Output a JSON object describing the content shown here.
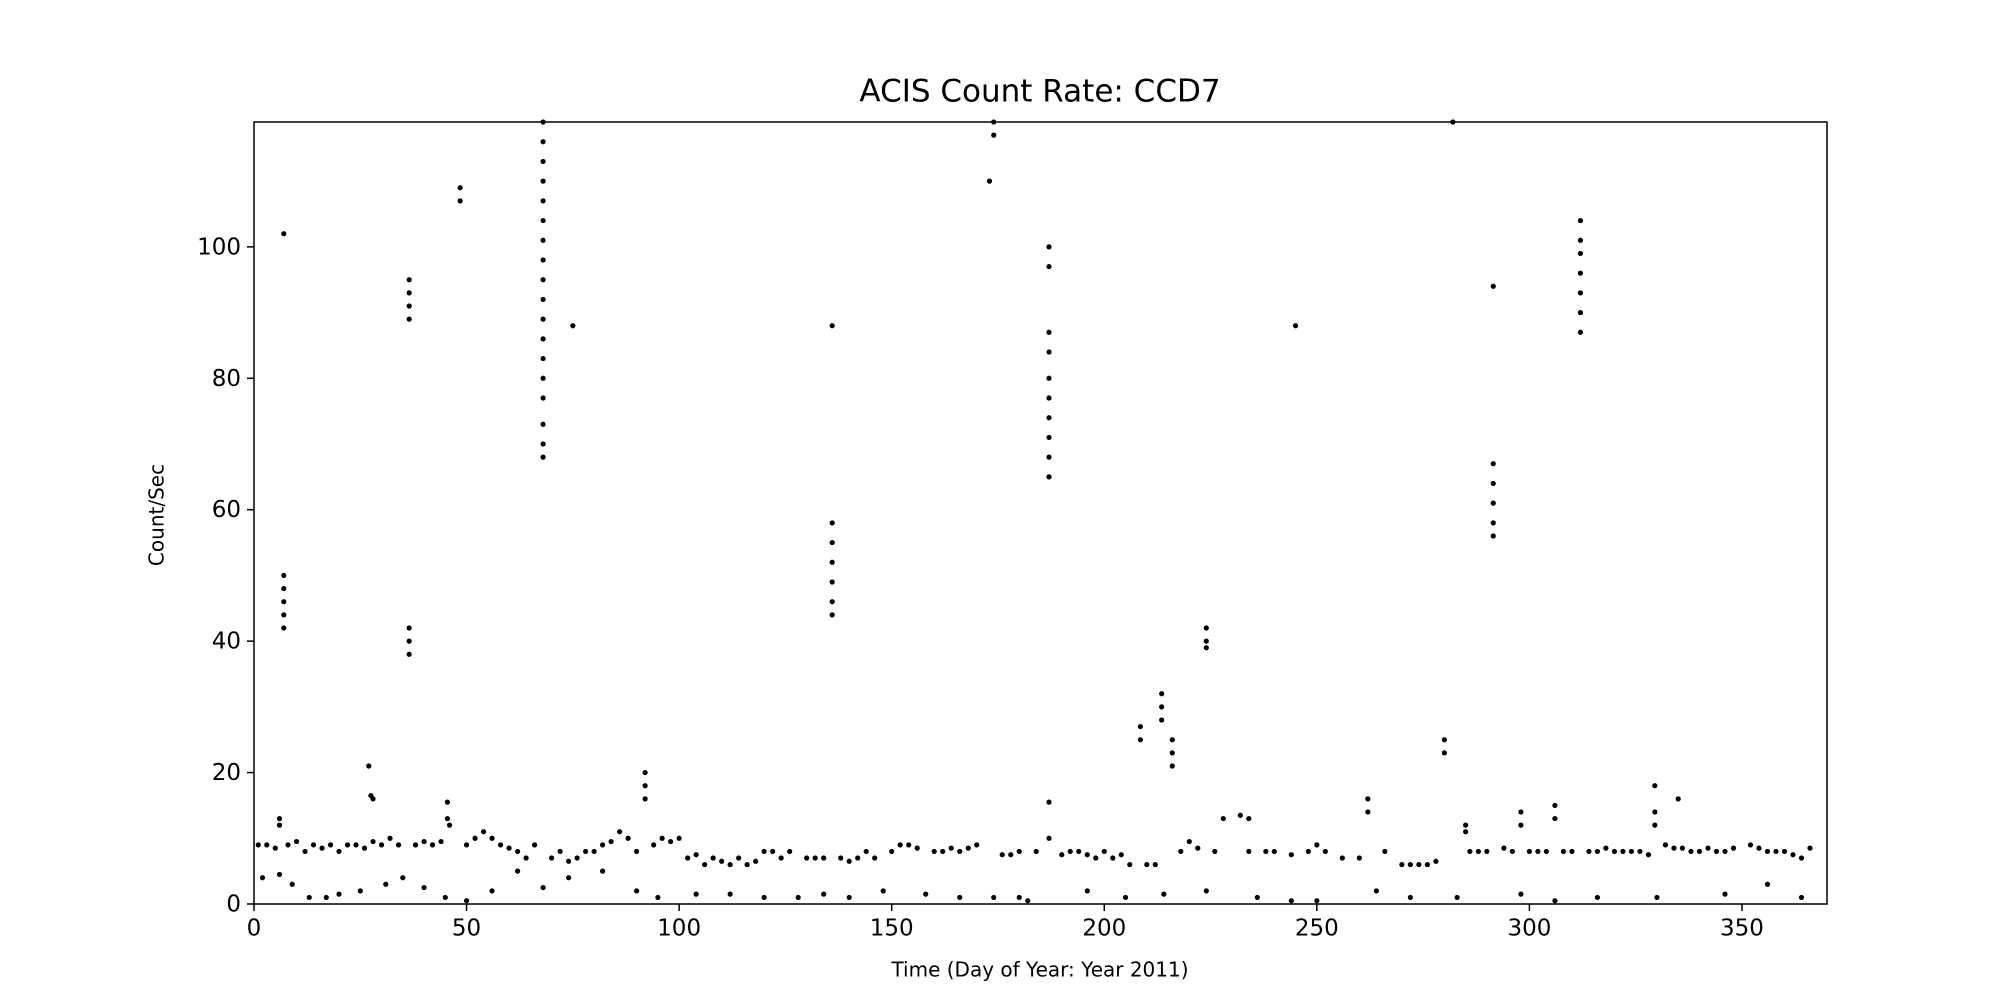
{
  "chart_data": {
    "type": "scatter",
    "title": "ACIS Count Rate: CCD7",
    "xlabel": "Time (Day of Year: Year 2011)",
    "ylabel": "Count/Sec",
    "color": "#000000",
    "grid": false,
    "xlim": [
      0,
      370
    ],
    "ylim": [
      0,
      119
    ],
    "xticks": [
      0,
      50,
      100,
      150,
      200,
      250,
      300,
      350
    ],
    "yticks": [
      0,
      20,
      40,
      60,
      80,
      100
    ],
    "x": [
      1,
      3,
      5,
      8,
      10,
      12,
      14,
      16,
      18,
      20,
      22,
      24,
      26,
      28,
      30,
      32,
      34,
      38,
      40,
      42,
      44,
      46,
      50,
      52,
      54,
      56,
      58,
      60,
      62,
      64,
      66,
      70,
      72,
      74,
      76,
      78,
      80,
      82,
      84,
      86,
      88,
      90,
      94,
      96,
      98,
      100,
      102,
      104,
      106,
      108,
      110,
      112,
      114,
      116,
      118,
      120,
      122,
      124,
      126,
      130,
      132,
      134,
      138,
      140,
      142,
      144,
      146,
      150,
      152,
      154,
      156,
      160,
      162,
      164,
      166,
      168,
      170,
      176,
      178,
      180,
      184,
      190,
      192,
      194,
      196,
      198,
      200,
      202,
      204,
      206,
      210,
      212,
      218,
      220,
      222,
      226,
      228,
      234,
      238,
      240,
      244,
      248,
      250,
      252,
      256,
      260,
      266,
      270,
      272,
      274,
      276,
      278,
      286,
      288,
      290,
      294,
      296,
      300,
      302,
      304,
      308,
      310,
      314,
      316,
      318,
      320,
      322,
      324,
      326,
      328,
      332,
      334,
      336,
      338,
      340,
      342,
      344,
      346,
      348,
      352,
      354,
      356,
      358,
      360,
      362,
      364,
      366,
      2,
      6,
      9,
      13,
      17,
      20,
      25,
      31,
      35,
      40,
      45,
      50,
      56,
      62,
      68,
      74,
      82,
      90,
      95,
      104,
      112,
      120,
      128,
      134,
      140,
      148,
      158,
      166,
      174,
      180,
      182,
      196,
      205,
      214,
      224,
      236,
      244,
      250,
      264,
      272,
      283,
      298,
      306,
      316,
      330,
      346,
      356,
      364,
      7,
      7,
      7,
      7,
      7,
      7,
      6,
      6,
      27,
      27.5,
      28,
      36.5,
      36.5,
      36.5,
      36.5,
      36.5,
      36.5,
      36.5,
      45.5,
      45.5,
      48.5,
      48.5,
      68,
      68,
      68,
      68,
      68,
      68,
      68,
      68,
      68,
      68,
      68,
      68,
      68,
      68,
      68,
      68,
      68,
      68,
      75,
      92,
      92,
      92,
      136,
      136,
      136,
      136,
      136,
      136,
      136,
      173,
      174,
      174,
      187,
      187,
      187,
      187,
      187,
      187,
      187,
      187,
      187,
      187,
      187,
      187,
      208.5,
      208.5,
      213.5,
      213.5,
      213.5,
      216,
      216,
      216,
      224,
      224,
      224,
      232,
      234,
      245,
      262,
      262,
      280,
      280,
      282,
      285,
      285,
      291.5,
      291.5,
      291.5,
      291.5,
      291.5,
      291.5,
      298,
      298,
      306,
      306,
      312,
      312,
      312,
      312,
      312,
      312,
      312,
      329.5,
      329.5,
      329.5,
      335
    ],
    "values": [
      9,
      9,
      8.5,
      9,
      9.5,
      8,
      9,
      8.5,
      9,
      8,
      9,
      9,
      8.5,
      9.5,
      9,
      10,
      9,
      9,
      9.5,
      9,
      9.5,
      12,
      9,
      10,
      11,
      10,
      9,
      8.5,
      8,
      7,
      9,
      7,
      8,
      6.5,
      7,
      8,
      8,
      9,
      9.5,
      11,
      10,
      8,
      9,
      10,
      9.5,
      10,
      7,
      7.5,
      6,
      7,
      6.5,
      6,
      7,
      6,
      6.5,
      8,
      8,
      7,
      8,
      7,
      7,
      7,
      7,
      6.5,
      7,
      8,
      7,
      8,
      9,
      9,
      8.5,
      8,
      8,
      8.5,
      8,
      8.5,
      9,
      7.5,
      7.5,
      8,
      8,
      7.5,
      8,
      8,
      7.5,
      7,
      8,
      7,
      7.5,
      6,
      6,
      6,
      8,
      9.5,
      8.5,
      8,
      13,
      8,
      8,
      8,
      7.5,
      8,
      9,
      8,
      7,
      7,
      8,
      6,
      6,
      6,
      6,
      6.5,
      8,
      8,
      8,
      8.5,
      8,
      8,
      8,
      8,
      8,
      8,
      8,
      8,
      8.5,
      8,
      8,
      8,
      8,
      7.5,
      9,
      8.5,
      8.5,
      8,
      8,
      8.5,
      8,
      8,
      8.5,
      9,
      8.5,
      8,
      8,
      8,
      7.5,
      7,
      8.5,
      4,
      4.5,
      3,
      1,
      1,
      1.5,
      2,
      3,
      4,
      2.5,
      1,
      0.5,
      2,
      5,
      2.5,
      4,
      5,
      2,
      1,
      1.5,
      1.5,
      1,
      1,
      1.5,
      1,
      2,
      1.5,
      1,
      1,
      1,
      0.5,
      2,
      1,
      1.5,
      2,
      1,
      0.5,
      0.5,
      2,
      1,
      1,
      1.5,
      0.5,
      1,
      1,
      1.5,
      3,
      1,
      102,
      50,
      48,
      46,
      44,
      42,
      13,
      12,
      21,
      16.5,
      16,
      95,
      93,
      91,
      89,
      42,
      40,
      38,
      15.5,
      13,
      109,
      107,
      119,
      116,
      113,
      110,
      107,
      104,
      101,
      98,
      95,
      92,
      89,
      86,
      83,
      80,
      77,
      73,
      70,
      68,
      88,
      20,
      18,
      16,
      58,
      55,
      52,
      49,
      46,
      44,
      88,
      110,
      119,
      117,
      100,
      97,
      87,
      84,
      80,
      77,
      74,
      71,
      68,
      65,
      15.5,
      10,
      27,
      25,
      32,
      30,
      28,
      25,
      23,
      21,
      42,
      40,
      39,
      13.5,
      13,
      88,
      16,
      14,
      25,
      23,
      119,
      12,
      11,
      67,
      64,
      61,
      58,
      56,
      94,
      14,
      12,
      15,
      13,
      104,
      101,
      99,
      96,
      93,
      90,
      87,
      18,
      14,
      12,
      16
    ]
  }
}
